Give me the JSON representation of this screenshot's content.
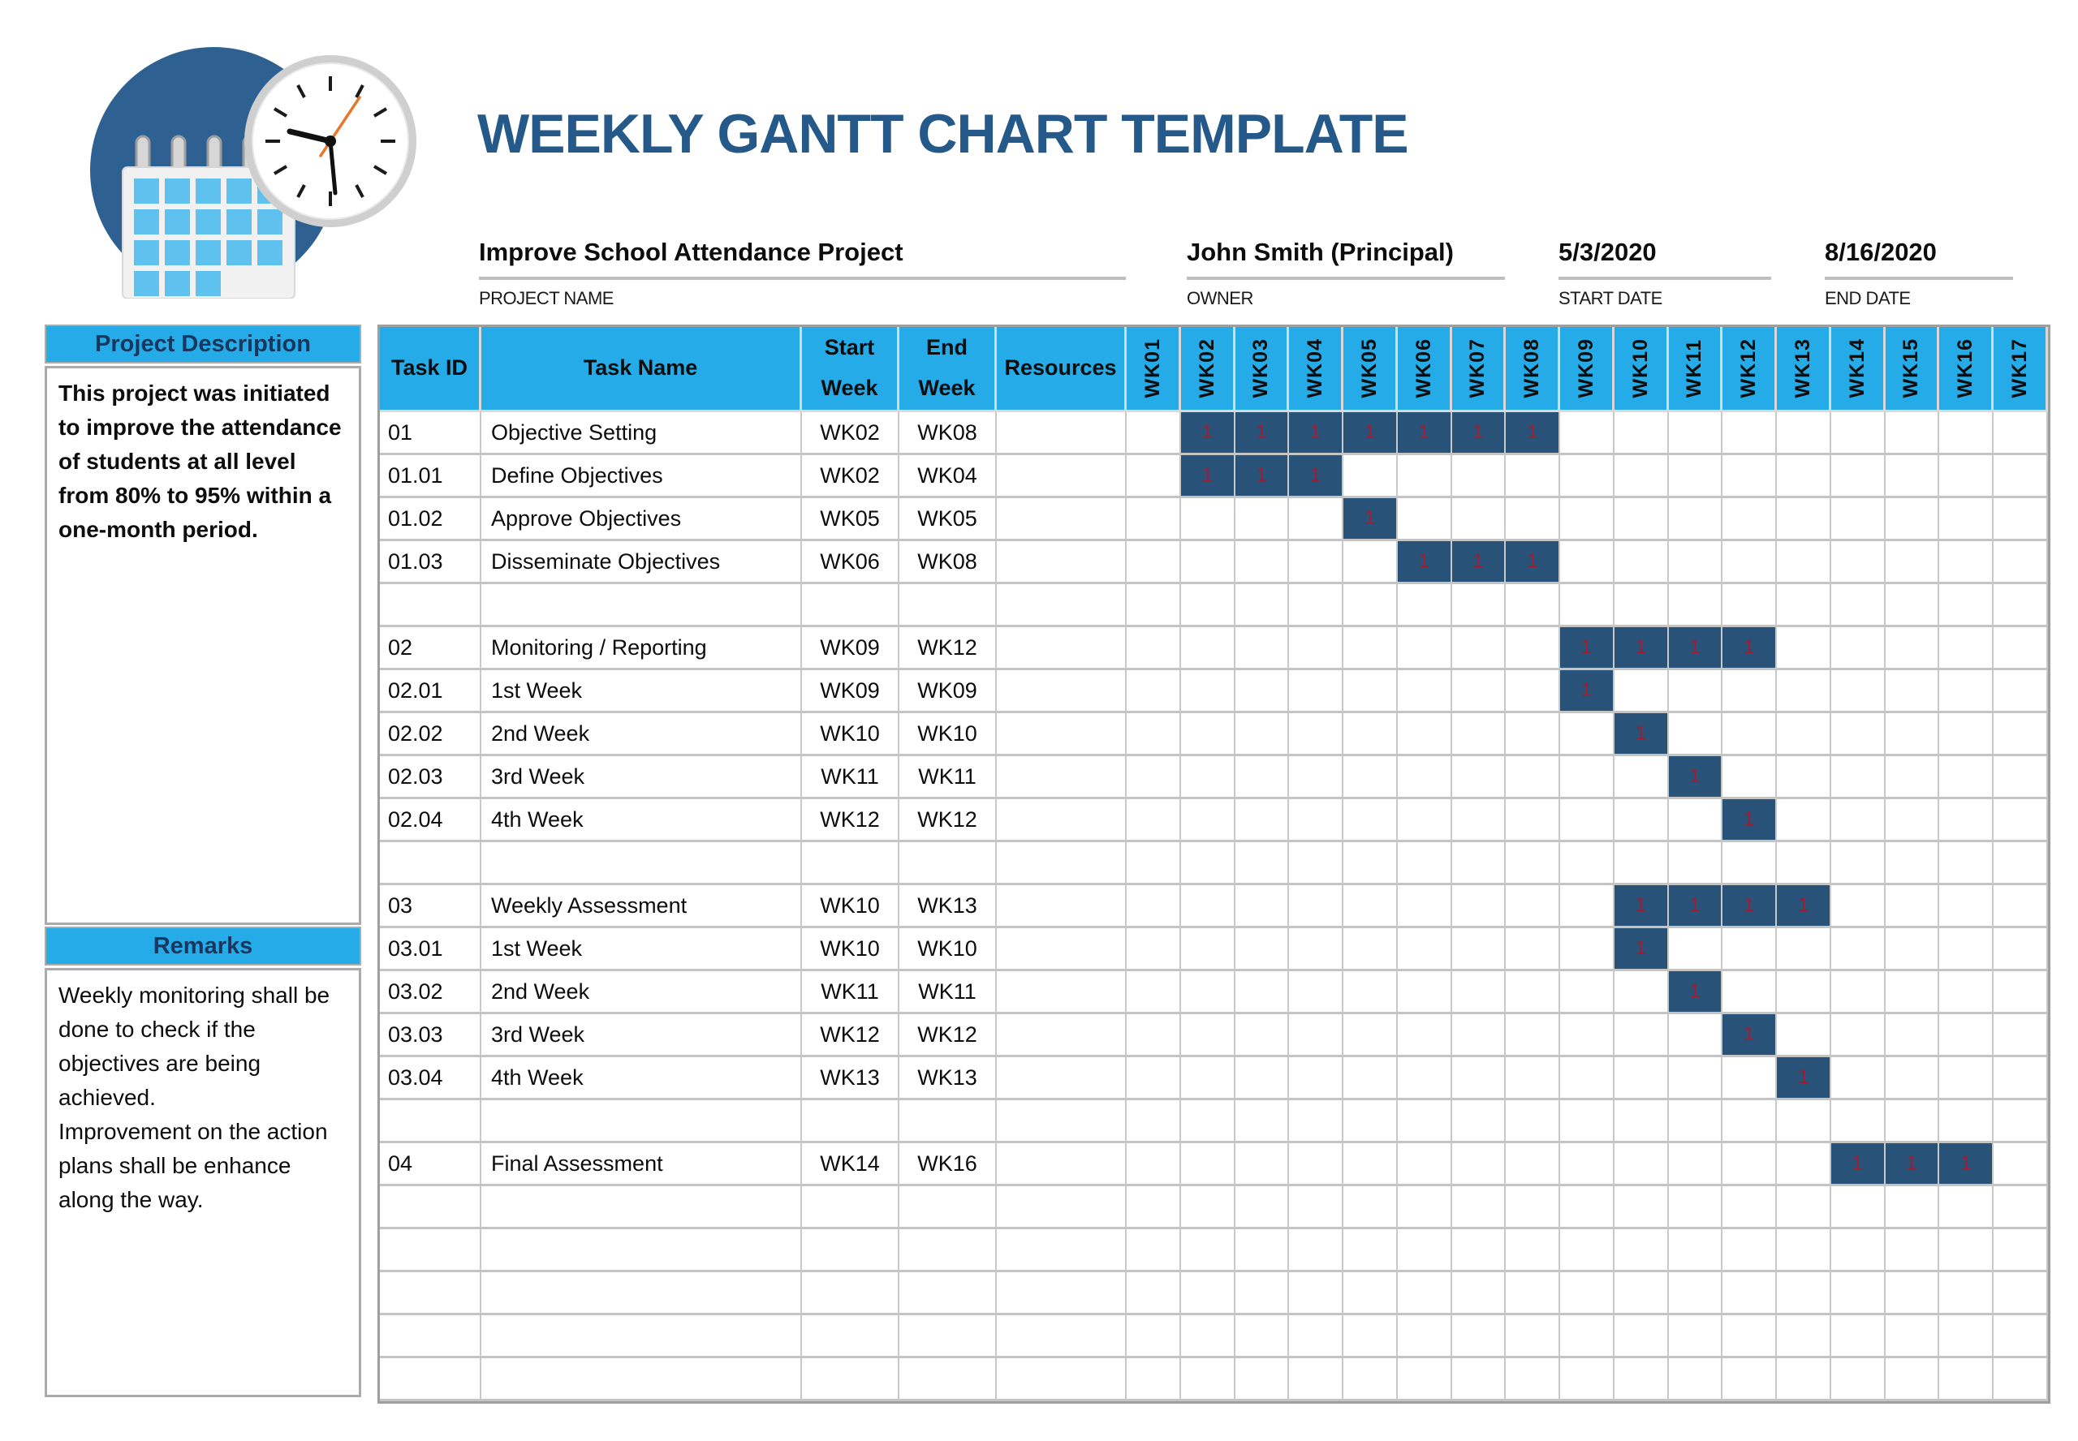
{
  "title": "WEEKLY GANTT CHART TEMPLATE",
  "icons": {
    "logo": "calendar-clock"
  },
  "colors": {
    "header_cyan": "#25ABE8",
    "bar_navy": "#285278",
    "bar_red": "#A11D32",
    "title_blue": "#24598A",
    "sidebar_title_navy": "#17375E",
    "rule_gray": "#BFBFBF",
    "logo_circle_blue": "#2E6191",
    "calendar_square_blue": "#5FC2EE",
    "clock_second_hand_orange": "#E8772E"
  },
  "meta": {
    "project": {
      "value": "Improve School Attendance Project",
      "label": "PROJECT NAME"
    },
    "owner": {
      "value": "John Smith (Principal)",
      "label": "OWNER"
    },
    "start": {
      "value": "5/3/2020",
      "label": "START DATE"
    },
    "end": {
      "value": "8/16/2020",
      "label": "END DATE"
    }
  },
  "sidebar": {
    "description_title": "Project Description",
    "description_text": "This project was initiated to improve the attendance of students at all level from 80% to 95% within a one-month period.",
    "remarks_title": "Remarks",
    "remarks_text": "Weekly monitoring shall be done to check if the objectives are being achieved.\nImprovement on the action plans shall be enhance along the way."
  },
  "table": {
    "columns": [
      "Task ID",
      "Task Name",
      "Start Week",
      "End Week",
      "Resources"
    ],
    "weeks": [
      "WK01",
      "WK02",
      "WK03",
      "WK04",
      "WK05",
      "WK06",
      "WK07",
      "WK08",
      "WK09",
      "WK10",
      "WK11",
      "WK12",
      "WK13",
      "WK14",
      "WK15",
      "WK16",
      "WK17"
    ],
    "bar_cell_value": "1",
    "rows": [
      {
        "id": "01",
        "name": "Objective Setting",
        "start": "WK02",
        "end": "WK08",
        "resources": "",
        "bar": [
          2,
          8
        ]
      },
      {
        "id": "01.01",
        "name": "Define Objectives",
        "start": "WK02",
        "end": "WK04",
        "resources": "",
        "bar": [
          2,
          4
        ]
      },
      {
        "id": "01.02",
        "name": "Approve Objectives",
        "start": "WK05",
        "end": "WK05",
        "resources": "",
        "bar": [
          5,
          5
        ]
      },
      {
        "id": "01.03",
        "name": "Disseminate Objectives",
        "start": "WK06",
        "end": "WK08",
        "resources": "",
        "bar": [
          6,
          8
        ]
      },
      {
        "id": "",
        "name": "",
        "start": "",
        "end": "",
        "resources": "",
        "bar": null
      },
      {
        "id": "02",
        "name": "Monitoring / Reporting",
        "start": "WK09",
        "end": "WK12",
        "resources": "",
        "bar": [
          9,
          12
        ]
      },
      {
        "id": "02.01",
        "name": "1st Week",
        "start": "WK09",
        "end": "WK09",
        "resources": "",
        "bar": [
          9,
          9
        ]
      },
      {
        "id": "02.02",
        "name": "2nd Week",
        "start": "WK10",
        "end": "WK10",
        "resources": "",
        "bar": [
          10,
          10
        ]
      },
      {
        "id": "02.03",
        "name": "3rd Week",
        "start": "WK11",
        "end": "WK11",
        "resources": "",
        "bar": [
          11,
          11
        ]
      },
      {
        "id": "02.04",
        "name": "4th Week",
        "start": "WK12",
        "end": "WK12",
        "resources": "",
        "bar": [
          12,
          12
        ]
      },
      {
        "id": "",
        "name": "",
        "start": "",
        "end": "",
        "resources": "",
        "bar": null
      },
      {
        "id": "03",
        "name": "Weekly Assessment",
        "start": "WK10",
        "end": "WK13",
        "resources": "",
        "bar": [
          10,
          13
        ]
      },
      {
        "id": "03.01",
        "name": "1st Week",
        "start": "WK10",
        "end": "WK10",
        "resources": "",
        "bar": [
          10,
          10
        ]
      },
      {
        "id": "03.02",
        "name": "2nd Week",
        "start": "WK11",
        "end": "WK11",
        "resources": "",
        "bar": [
          11,
          11
        ]
      },
      {
        "id": "03.03",
        "name": "3rd Week",
        "start": "WK12",
        "end": "WK12",
        "resources": "",
        "bar": [
          12,
          12
        ]
      },
      {
        "id": "03.04",
        "name": "4th Week",
        "start": "WK13",
        "end": "WK13",
        "resources": "",
        "bar": [
          13,
          13
        ]
      },
      {
        "id": "",
        "name": "",
        "start": "",
        "end": "",
        "resources": "",
        "bar": null
      },
      {
        "id": "04",
        "name": "Final Assessment",
        "start": "WK14",
        "end": "WK16",
        "resources": "",
        "bar": [
          14,
          16
        ]
      },
      {
        "id": "",
        "name": "",
        "start": "",
        "end": "",
        "resources": "",
        "bar": null
      },
      {
        "id": "",
        "name": "",
        "start": "",
        "end": "",
        "resources": "",
        "bar": null
      },
      {
        "id": "",
        "name": "",
        "start": "",
        "end": "",
        "resources": "",
        "bar": null
      },
      {
        "id": "",
        "name": "",
        "start": "",
        "end": "",
        "resources": "",
        "bar": null
      },
      {
        "id": "",
        "name": "",
        "start": "",
        "end": "",
        "resources": "",
        "bar": null
      }
    ]
  },
  "chart_data": {
    "type": "table",
    "title": "WEEKLY GANTT CHART TEMPLATE",
    "x": [
      "WK01",
      "WK02",
      "WK03",
      "WK04",
      "WK05",
      "WK06",
      "WK07",
      "WK08",
      "WK09",
      "WK10",
      "WK11",
      "WK12",
      "WK13",
      "WK14",
      "WK15",
      "WK16",
      "WK17"
    ],
    "tasks": [
      {
        "task_id": "01",
        "task_name": "Objective Setting",
        "start_week": "WK02",
        "end_week": "WK08"
      },
      {
        "task_id": "01.01",
        "task_name": "Define Objectives",
        "start_week": "WK02",
        "end_week": "WK04"
      },
      {
        "task_id": "01.02",
        "task_name": "Approve Objectives",
        "start_week": "WK05",
        "end_week": "WK05"
      },
      {
        "task_id": "01.03",
        "task_name": "Disseminate Objectives",
        "start_week": "WK06",
        "end_week": "WK08"
      },
      {
        "task_id": "02",
        "task_name": "Monitoring / Reporting",
        "start_week": "WK09",
        "end_week": "WK12"
      },
      {
        "task_id": "02.01",
        "task_name": "1st Week",
        "start_week": "WK09",
        "end_week": "WK09"
      },
      {
        "task_id": "02.02",
        "task_name": "2nd Week",
        "start_week": "WK10",
        "end_week": "WK10"
      },
      {
        "task_id": "02.03",
        "task_name": "3rd Week",
        "start_week": "WK11",
        "end_week": "WK11"
      },
      {
        "task_id": "02.04",
        "task_name": "4th Week",
        "start_week": "WK12",
        "end_week": "WK12"
      },
      {
        "task_id": "03",
        "task_name": "Weekly Assessment",
        "start_week": "WK10",
        "end_week": "WK13"
      },
      {
        "task_id": "03.01",
        "task_name": "1st Week",
        "start_week": "WK10",
        "end_week": "WK10"
      },
      {
        "task_id": "03.02",
        "task_name": "2nd Week",
        "start_week": "WK11",
        "end_week": "WK11"
      },
      {
        "task_id": "03.03",
        "task_name": "3rd Week",
        "start_week": "WK12",
        "end_week": "WK12"
      },
      {
        "task_id": "03.04",
        "task_name": "4th Week",
        "start_week": "WK13",
        "end_week": "WK13"
      },
      {
        "task_id": "04",
        "task_name": "Final Assessment",
        "start_week": "WK14",
        "end_week": "WK16"
      }
    ]
  }
}
